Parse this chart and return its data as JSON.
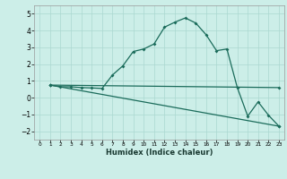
{
  "title": "",
  "xlabel": "Humidex (Indice chaleur)",
  "bg_color": "#cceee8",
  "grid_color": "#aad8d0",
  "line_color": "#1a6b5a",
  "xlim": [
    -0.5,
    23.5
  ],
  "ylim": [
    -2.5,
    5.5
  ],
  "yticks": [
    -2,
    -1,
    0,
    1,
    2,
    3,
    4,
    5
  ],
  "xticks": [
    0,
    1,
    2,
    3,
    4,
    5,
    6,
    7,
    8,
    9,
    10,
    11,
    12,
    13,
    14,
    15,
    16,
    17,
    18,
    19,
    20,
    21,
    22,
    23
  ],
  "curve1_x": [
    1,
    2,
    3,
    4,
    5,
    6,
    7,
    8,
    9,
    10,
    11,
    12,
    13,
    14,
    15,
    16,
    17,
    18,
    19,
    20,
    21,
    22,
    23
  ],
  "curve1_y": [
    0.75,
    0.65,
    0.65,
    0.6,
    0.58,
    0.55,
    1.35,
    1.9,
    2.75,
    2.9,
    3.2,
    4.2,
    4.5,
    4.75,
    4.45,
    3.75,
    2.8,
    2.9,
    0.6,
    -1.1,
    -0.25,
    -1.05,
    -1.7
  ],
  "curve2_x": [
    1,
    23
  ],
  "curve2_y": [
    0.75,
    0.6
  ],
  "curve3_x": [
    1,
    23
  ],
  "curve3_y": [
    0.75,
    -1.7
  ],
  "figsize": [
    3.2,
    2.0
  ],
  "dpi": 100
}
